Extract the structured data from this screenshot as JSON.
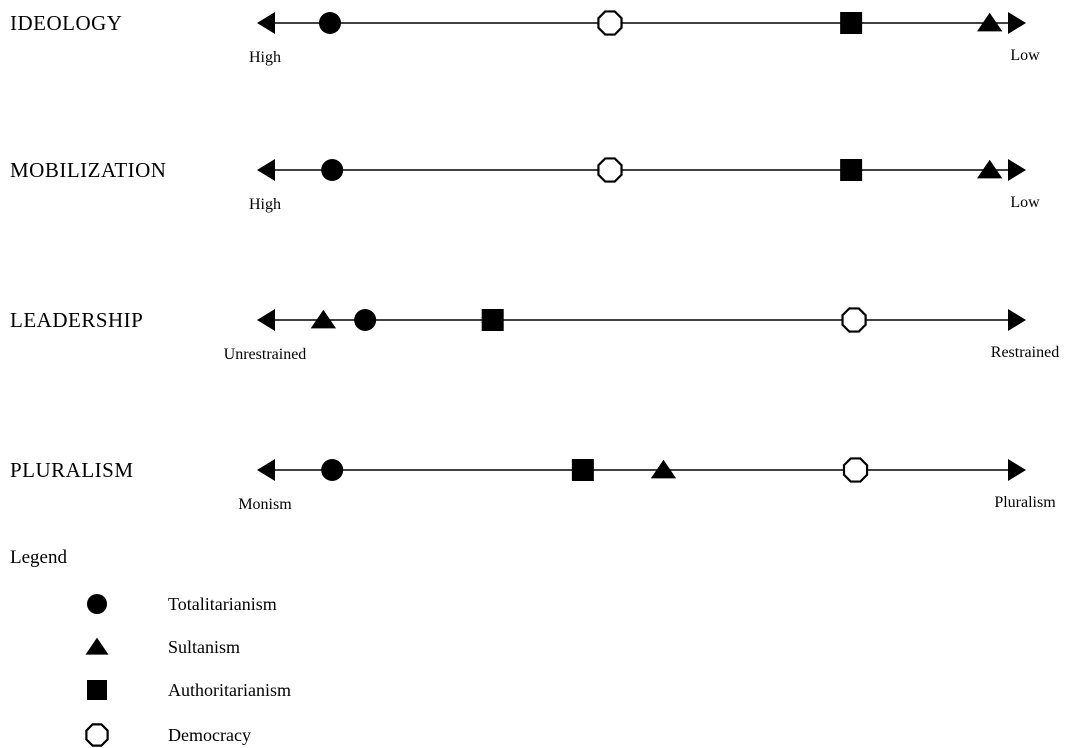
{
  "dimensions": [
    {
      "label": "IDEOLOGY",
      "left_end": "High",
      "right_end": "Low",
      "markers": [
        {
          "regime": "totalitarianism",
          "position": 0.075
        },
        {
          "regime": "democracy",
          "position": 0.457
        },
        {
          "regime": "authoritarianism",
          "position": 0.786
        },
        {
          "regime": "sultanism",
          "position": 0.975
        }
      ]
    },
    {
      "label": "MOBILIZATION",
      "left_end": "High",
      "right_end": "Low",
      "markers": [
        {
          "regime": "totalitarianism",
          "position": 0.078
        },
        {
          "regime": "democracy",
          "position": 0.457
        },
        {
          "regime": "authoritarianism",
          "position": 0.786
        },
        {
          "regime": "sultanism",
          "position": 0.975
        }
      ]
    },
    {
      "label": "LEADERSHIP",
      "left_end": "Unrestrained",
      "right_end": "Restrained",
      "markers": [
        {
          "regime": "sultanism",
          "position": 0.066
        },
        {
          "regime": "totalitarianism",
          "position": 0.123
        },
        {
          "regime": "authoritarianism",
          "position": 0.297
        },
        {
          "regime": "democracy",
          "position": 0.79
        }
      ]
    },
    {
      "label": "PLURALISM",
      "left_end": "Monism",
      "right_end": "Pluralism",
      "markers": [
        {
          "regime": "totalitarianism",
          "position": 0.078
        },
        {
          "regime": "authoritarianism",
          "position": 0.42
        },
        {
          "regime": "sultanism",
          "position": 0.53
        },
        {
          "regime": "democracy",
          "position": 0.792
        }
      ]
    }
  ],
  "legend": {
    "title": "Legend",
    "items": [
      {
        "regime": "totalitarianism",
        "label": "Totalitarianism",
        "icon": "filled-circle-icon"
      },
      {
        "regime": "sultanism",
        "label": "Sultanism",
        "icon": "filled-triangle-icon"
      },
      {
        "regime": "authoritarianism",
        "label": "Authoritarianism",
        "icon": "filled-square-icon"
      },
      {
        "regime": "democracy",
        "label": "Democracy",
        "icon": "hollow-octagon-icon"
      }
    ]
  },
  "colors": {
    "ink": "#000000",
    "background": "#ffffff"
  }
}
